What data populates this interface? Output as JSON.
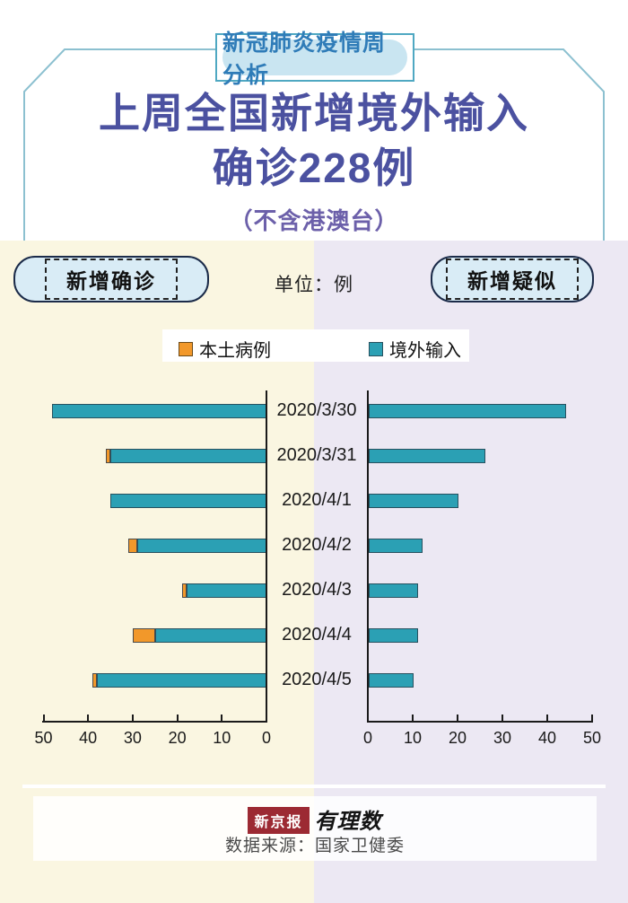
{
  "badge": {
    "label": "新冠肺炎疫情周分析"
  },
  "title": {
    "line1": "上周全国新增境外输入",
    "line2": "确诊228例",
    "subtitle": "（不含港澳台）"
  },
  "controls": {
    "left_button": "新增确诊",
    "right_button": "新增疑似",
    "unit_label": "单位：例"
  },
  "legend": {
    "local": "本土病例",
    "imported": "境外输入"
  },
  "chart_data": {
    "type": "bar",
    "orientation": "horizontal-diverging",
    "left_chart_title": "新增确诊",
    "right_chart_title": "新增疑似",
    "unit": "例",
    "categories": [
      "2020/3/30",
      "2020/3/31",
      "2020/4/1",
      "2020/4/2",
      "2020/4/3",
      "2020/4/4",
      "2020/4/5"
    ],
    "series": [
      {
        "name": "本土病例",
        "chart": "left",
        "color": "#f2982a",
        "values": [
          0,
          1,
          0,
          2,
          1,
          5,
          1
        ]
      },
      {
        "name": "境外输入",
        "chart": "left",
        "color": "#2ba0b4",
        "values": [
          48,
          35,
          35,
          29,
          18,
          25,
          38
        ]
      },
      {
        "name": "新增疑似",
        "chart": "right",
        "color": "#2ba0b4",
        "values": [
          44,
          26,
          20,
          12,
          11,
          11,
          10
        ]
      }
    ],
    "left_axis_ticks": [
      50,
      40,
      30,
      20,
      10,
      0
    ],
    "right_axis_ticks": [
      0,
      10,
      20,
      30,
      40,
      50
    ],
    "xlim": [
      0,
      50
    ],
    "grid": false,
    "legend_position": "top"
  },
  "colors": {
    "accent_teal_bar": "#2ba0b4",
    "accent_orange_bar": "#f2982a",
    "title_indigo": "#4b51a0",
    "subtitle_purple": "#6c60aa",
    "badge_blue": "#2f7cb8",
    "panel_left_bg": "#faf6e1",
    "panel_right_bg": "#ece8f3",
    "logo_red": "#9c2a33"
  },
  "footer": {
    "logo_left": "新京报",
    "logo_right": "有理数",
    "source": "数据来源：国家卫健委"
  }
}
